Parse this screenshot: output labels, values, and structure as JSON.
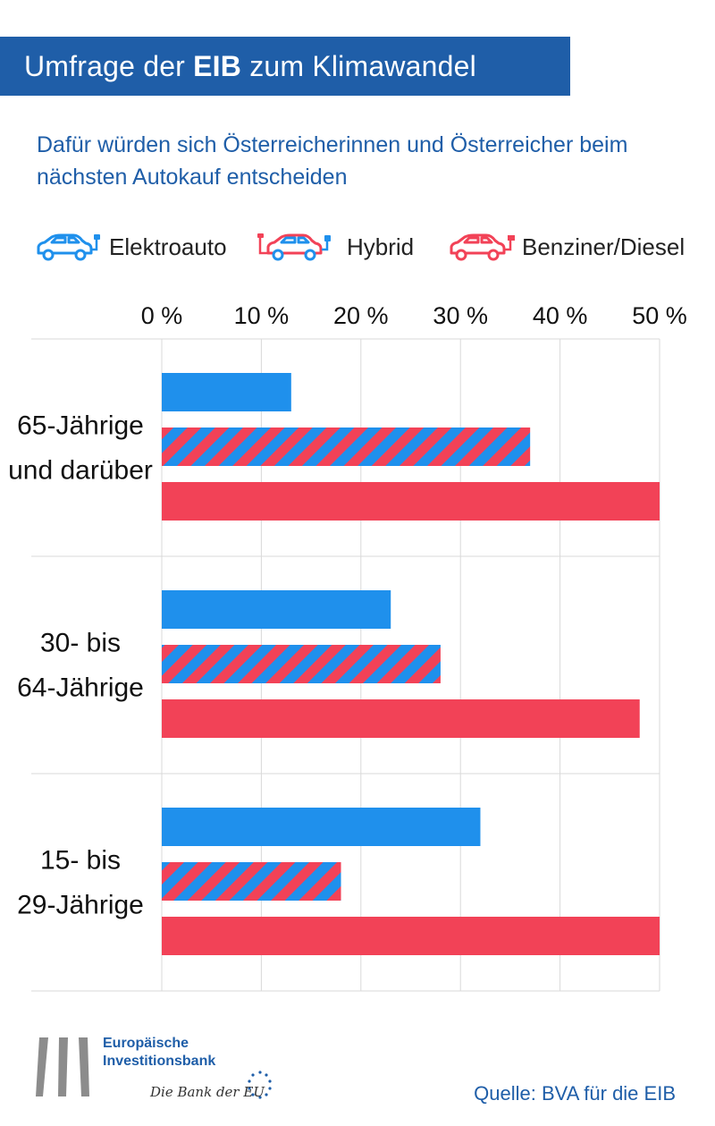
{
  "header": {
    "title_prefix": "Umfrage der",
    "title_bold": "EIB",
    "title_suffix": "zum Klimawandel",
    "subtitle": "Dafür würden sich Österreicherinnen und Österreicher beim nächsten Autokauf entscheiden"
  },
  "colors": {
    "brand_blue": "#1f5ea8",
    "electric": "#1f90ec",
    "combustion": "#f24257",
    "gridline": "#d9d9d9"
  },
  "legend": [
    {
      "label": "Elektroauto",
      "icon": "electric-car-icon"
    },
    {
      "label": "Hybrid",
      "icon": "hybrid-car-icon"
    },
    {
      "label": "Benziner/Diesel",
      "icon": "fuel-car-icon"
    }
  ],
  "chart_data": {
    "type": "bar",
    "orientation": "horizontal",
    "title": "Dafür würden sich Österreicherinnen und Österreicher beim nächsten Autokauf entscheiden",
    "categories": [
      "65-Jährige und darüber",
      "30- bis 64-Jährige",
      "15- bis 29-Jährige"
    ],
    "category_lines": [
      [
        "65-Jährige",
        "und darüber"
      ],
      [
        "30- bis",
        "64-Jährige"
      ],
      [
        "15- bis",
        "29-Jährige"
      ]
    ],
    "series": [
      {
        "name": "Elektroauto",
        "values": [
          13,
          23,
          32
        ]
      },
      {
        "name": "Hybrid",
        "values": [
          37,
          28,
          18
        ]
      },
      {
        "name": "Benziner/Diesel",
        "values": [
          50,
          48,
          50
        ]
      }
    ],
    "xlim": [
      0,
      50
    ],
    "ticks": [
      0,
      10,
      20,
      30,
      40,
      50
    ],
    "tick_labels": [
      "0 %",
      "10 %",
      "20 %",
      "30 %",
      "40 %",
      "50 %"
    ],
    "xlabel": "",
    "ylabel": "",
    "grid": true,
    "legend_position": "top"
  },
  "footer": {
    "bank_line1": "Europäische",
    "bank_line2": "Investitionsbank",
    "tagline": "Die Bank der EU",
    "source": "Quelle: BVA für die EIB"
  }
}
